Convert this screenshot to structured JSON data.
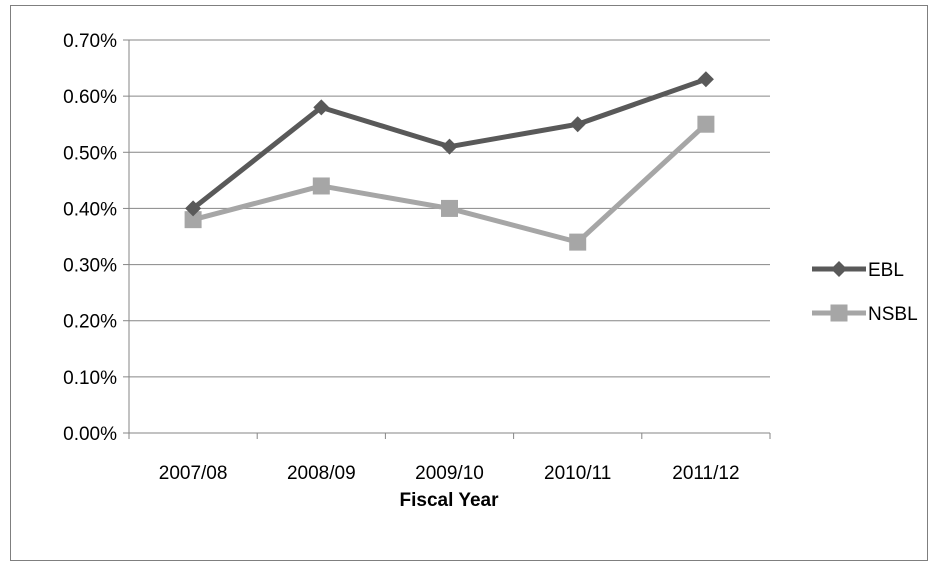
{
  "chart_data": {
    "type": "line",
    "title": "",
    "xlabel": "Fiscal Year",
    "ylabel": "",
    "categories": [
      "2007/08",
      "2008/09",
      "2009/10",
      "2010/11",
      "2011/12"
    ],
    "ylim": [
      0,
      0.7
    ],
    "y_ticks": [
      0,
      0.1,
      0.2,
      0.3,
      0.4,
      0.5,
      0.6,
      0.7
    ],
    "y_tick_labels": [
      "0.00%",
      "0.10%",
      "0.20%",
      "0.30%",
      "0.40%",
      "0.50%",
      "0.60%",
      "0.70%"
    ],
    "grid": true,
    "legend_position": "right",
    "series": [
      {
        "name": "EBL",
        "values": [
          0.4,
          0.58,
          0.51,
          0.55,
          0.63
        ],
        "color": "#595959",
        "marker": "diamond"
      },
      {
        "name": "NSBL",
        "values": [
          0.38,
          0.44,
          0.4,
          0.34,
          0.55
        ],
        "color": "#a6a6a6",
        "marker": "square"
      }
    ]
  }
}
